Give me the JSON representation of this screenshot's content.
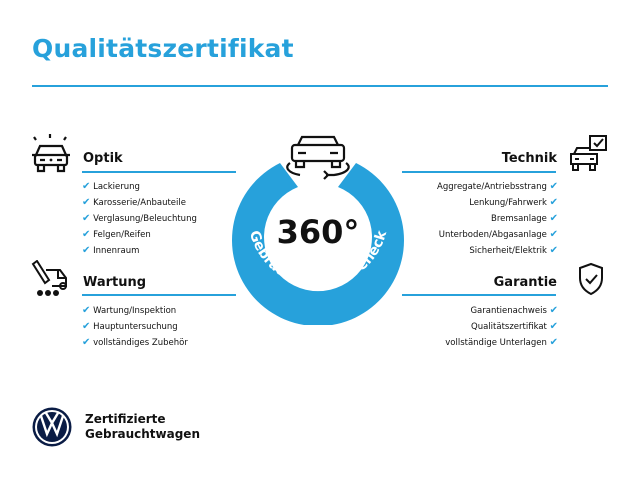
{
  "title": "Qualitätszertifikat",
  "badge": {
    "value": "360°",
    "arc_text": "Gebrauchtwagen-Check",
    "color": "#27a1db"
  },
  "sections": {
    "optik": {
      "title": "Optik",
      "icon": "car-lights-icon",
      "items": [
        "Lackierung",
        "Karosserie/Anbauteile",
        "Verglasung/Beleuchtung",
        "Felgen/Reifen",
        "Innenraum"
      ]
    },
    "wartung": {
      "title": "Wartung",
      "icon": "service-truck-icon",
      "items": [
        "Wartung/Inspektion",
        "Hauptuntersuchung",
        "vollständiges Zubehör"
      ]
    },
    "technik": {
      "title": "Technik",
      "icon": "car-checklist-icon",
      "items": [
        "Aggregate/Antriebsstrang",
        "Lenkung/Fahrwerk",
        "Bremsanlage",
        "Unterboden/Abgasanlage",
        "Sicherheit/Elektrik"
      ]
    },
    "garantie": {
      "title": "Garantie",
      "icon": "shield-check-icon",
      "items": [
        "Garantienachweis",
        "Qualitätszertifikat",
        "vollständige Unterlagen"
      ]
    }
  },
  "check_glyph": "✔",
  "brand": {
    "line1": "Zertifizierte",
    "line2": "Gebrauchtwagen",
    "logo": "vw-logo"
  }
}
